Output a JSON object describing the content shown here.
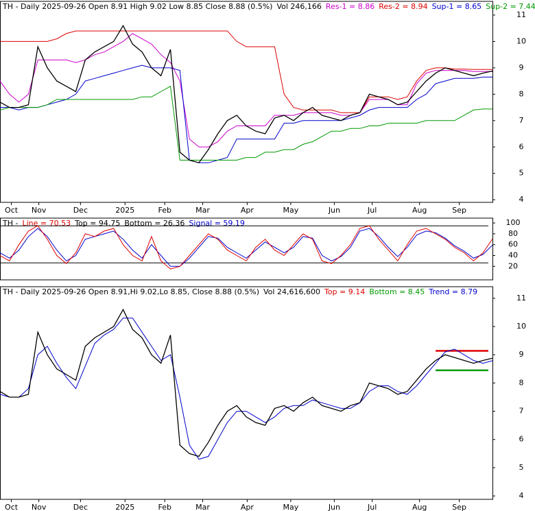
{
  "chart_data": [
    {
      "type": "line",
      "header": [
        {
          "text": "TH - Daily 2025-09-26 Open 8.91  High 9.02  Low 8.85  Close 8.88 (0.5%)",
          "color": "#000000"
        },
        {
          "text": "Vol 246,166",
          "color": "#000000"
        },
        {
          "text": "Res-1 = 8.86",
          "color": "#cc00cc"
        },
        {
          "text": "Res-2 = 8.94",
          "color": "#dd0000"
        },
        {
          "text": "Sup-1 = 8.65",
          "color": "#0000cc"
        },
        {
          "text": "Sup-2 = 7.44",
          "color": "#009900"
        }
      ],
      "xlim": [
        0,
        52
      ],
      "xticks": [
        {
          "value": 1.2,
          "label": "Oct"
        },
        {
          "value": 4.1,
          "label": "Nov"
        },
        {
          "value": 8.5,
          "label": "Dec"
        },
        {
          "value": 13.2,
          "label": "2025"
        },
        {
          "value": 17.4,
          "label": "Feb"
        },
        {
          "value": 21.4,
          "label": "Mar"
        },
        {
          "value": 26.1,
          "label": "Apr"
        },
        {
          "value": 30.7,
          "label": "May"
        },
        {
          "value": 35.3,
          "label": "Jun"
        },
        {
          "value": 39.3,
          "label": "Jul"
        },
        {
          "value": 44.3,
          "label": "Aug"
        },
        {
          "value": 48.5,
          "label": "Sep"
        }
      ],
      "ylim": [
        3.9,
        11.52
      ],
      "yticks": [
        4,
        5,
        6,
        7,
        8,
        9,
        10,
        11
      ],
      "series": [
        {
          "name": "Res-2",
          "color": "#dd0000",
          "values": [
            10.0,
            10.0,
            10.0,
            10.0,
            10.0,
            10.0,
            10.1,
            10.3,
            10.4,
            10.4,
            10.4,
            10.4,
            10.4,
            10.4,
            10.4,
            10.4,
            10.4,
            10.4,
            10.4,
            10.4,
            10.4,
            10.4,
            10.4,
            10.4,
            10.4,
            10.0,
            9.8,
            9.8,
            9.8,
            9.8,
            8.0,
            7.5,
            7.4,
            7.4,
            7.4,
            7.4,
            7.3,
            7.3,
            7.3,
            7.9,
            7.9,
            7.9,
            7.8,
            7.9,
            8.5,
            8.9,
            9.0,
            9.0,
            8.95,
            8.95,
            8.94,
            8.94,
            8.94
          ]
        },
        {
          "name": "Res-1",
          "color": "#cc00cc",
          "values": [
            8.5,
            8.0,
            7.7,
            8.0,
            9.3,
            9.3,
            9.3,
            9.3,
            9.2,
            9.3,
            9.5,
            9.6,
            9.8,
            10.0,
            10.3,
            10.1,
            9.9,
            9.5,
            9.2,
            8.5,
            6.3,
            6.0,
            6.0,
            6.2,
            6.6,
            6.8,
            6.8,
            6.8,
            6.8,
            7.2,
            7.2,
            7.2,
            7.3,
            7.3,
            7.3,
            7.3,
            7.2,
            7.2,
            7.3,
            7.8,
            7.8,
            7.8,
            7.6,
            7.6,
            8.4,
            8.8,
            8.9,
            8.9,
            8.9,
            8.9,
            8.86,
            8.86,
            8.86
          ]
        },
        {
          "name": "Sup-1",
          "color": "#0000cc",
          "values": [
            7.5,
            7.5,
            7.4,
            7.5,
            7.5,
            7.6,
            7.7,
            7.8,
            8.0,
            8.5,
            8.6,
            8.7,
            8.8,
            8.9,
            9.0,
            9.1,
            9.0,
            9.0,
            9.0,
            8.9,
            5.5,
            5.4,
            5.4,
            5.5,
            5.6,
            6.3,
            6.3,
            6.3,
            6.3,
            6.3,
            6.9,
            6.9,
            7.0,
            7.0,
            7.0,
            7.0,
            7.0,
            7.1,
            7.2,
            7.4,
            7.5,
            7.5,
            7.5,
            7.5,
            7.8,
            8.0,
            8.4,
            8.5,
            8.6,
            8.6,
            8.6,
            8.65,
            8.65
          ]
        },
        {
          "name": "Sup-2",
          "color": "#009900",
          "values": [
            7.4,
            7.5,
            7.5,
            7.5,
            7.5,
            7.6,
            7.8,
            7.8,
            7.8,
            7.8,
            7.8,
            7.8,
            7.8,
            7.8,
            7.8,
            7.9,
            7.9,
            8.1,
            8.3,
            5.5,
            5.5,
            5.5,
            5.5,
            5.5,
            5.5,
            5.5,
            5.6,
            5.6,
            5.8,
            5.8,
            5.9,
            5.9,
            6.1,
            6.2,
            6.4,
            6.6,
            6.6,
            6.7,
            6.7,
            6.8,
            6.8,
            6.9,
            6.9,
            6.9,
            6.9,
            7.0,
            7.0,
            7.0,
            7.0,
            7.2,
            7.4,
            7.44,
            7.44
          ]
        },
        {
          "name": "Close",
          "color": "#000000",
          "values": [
            7.7,
            7.5,
            7.5,
            7.6,
            9.8,
            9.0,
            8.5,
            8.3,
            8.1,
            9.3,
            9.6,
            9.8,
            10.0,
            10.6,
            9.9,
            9.6,
            9.0,
            8.7,
            9.7,
            5.8,
            5.5,
            5.4,
            5.9,
            6.5,
            7.0,
            7.2,
            6.8,
            6.6,
            6.5,
            7.1,
            7.2,
            7.0,
            7.3,
            7.5,
            7.2,
            7.1,
            7.0,
            7.2,
            7.3,
            8.0,
            7.9,
            7.8,
            7.6,
            7.7,
            8.1,
            8.5,
            8.8,
            9.0,
            8.9,
            8.8,
            8.7,
            8.8,
            8.88
          ]
        }
      ]
    },
    {
      "type": "line",
      "header": [
        {
          "text": "TH -",
          "color": "#000000"
        },
        {
          "text": "Line = 70.53",
          "color": "#dd0000"
        },
        {
          "text": "Top = 94.75",
          "color": "#000000"
        },
        {
          "text": "Bottom = 26.36",
          "color": "#000000"
        },
        {
          "text": "Signal = 59.19",
          "color": "#0000cc"
        }
      ],
      "xlim": [
        0,
        52
      ],
      "ylim": [
        -5,
        109
      ],
      "yticks": [
        20,
        40,
        60,
        80,
        100
      ],
      "levels": [
        {
          "value": 94.75,
          "color": "#000000"
        },
        {
          "value": 26.36,
          "color": "#000000"
        }
      ],
      "series": [
        {
          "name": "Signal",
          "color": "#0000cc",
          "values": [
            45,
            35,
            50,
            75,
            90,
            75,
            50,
            30,
            40,
            70,
            75,
            80,
            85,
            70,
            50,
            35,
            60,
            40,
            20,
            20,
            35,
            55,
            75,
            72,
            55,
            45,
            35,
            50,
            65,
            55,
            45,
            55,
            75,
            72,
            40,
            30,
            38,
            55,
            85,
            90,
            75,
            55,
            38,
            55,
            78,
            85,
            82,
            72,
            58,
            48,
            35,
            42,
            59.19
          ]
        },
        {
          "name": "Line",
          "color": "#dd0000",
          "values": [
            40,
            30,
            60,
            85,
            95,
            70,
            40,
            25,
            45,
            80,
            75,
            85,
            90,
            60,
            40,
            30,
            75,
            30,
            15,
            20,
            40,
            60,
            80,
            70,
            50,
            40,
            30,
            55,
            70,
            50,
            40,
            60,
            80,
            70,
            30,
            25,
            40,
            60,
            90,
            95,
            70,
            50,
            30,
            60,
            85,
            90,
            80,
            70,
            55,
            45,
            30,
            45,
            70.53
          ]
        }
      ]
    },
    {
      "type": "line",
      "header": [
        {
          "text": "TH - Daily 2025-09-26 Open 8.91,Hi 9.02,Lo 8.85, Close 8.88 (0.5%)",
          "color": "#000000"
        },
        {
          "text": "Vol 24,616,600",
          "color": "#000000"
        },
        {
          "text": "Top = 9.14",
          "color": "#dd0000"
        },
        {
          "text": "Bottom = 8.45",
          "color": "#009900"
        },
        {
          "text": "Trend = 8.79",
          "color": "#0000cc"
        }
      ],
      "xlim": [
        0,
        52
      ],
      "xticks": [
        {
          "value": 1.2,
          "label": "Oct"
        },
        {
          "value": 4.1,
          "label": "Nov"
        },
        {
          "value": 8.5,
          "label": "Dec"
        },
        {
          "value": 13.2,
          "label": "2025"
        },
        {
          "value": 17.4,
          "label": "Feb"
        },
        {
          "value": 21.4,
          "label": "Mar"
        },
        {
          "value": 26.1,
          "label": "Apr"
        },
        {
          "value": 30.7,
          "label": "May"
        },
        {
          "value": 35.3,
          "label": "Jun"
        },
        {
          "value": 39.3,
          "label": "Jul"
        },
        {
          "value": 44.3,
          "label": "Aug"
        },
        {
          "value": 48.5,
          "label": "Sep"
        }
      ],
      "ylim": [
        3.88,
        11.41
      ],
      "yticks": [
        4,
        5,
        6,
        7,
        8,
        9,
        10,
        11
      ],
      "levels": [
        {
          "value": 9.14,
          "color": "#dd0000"
        },
        {
          "value": 8.45,
          "color": "#009900"
        }
      ],
      "series": [
        {
          "name": "Trend",
          "color": "#0000cc",
          "values": [
            7.6,
            7.5,
            7.5,
            7.8,
            9.0,
            9.3,
            8.7,
            8.2,
            7.8,
            8.6,
            9.4,
            9.7,
            9.9,
            10.3,
            10.3,
            9.8,
            9.3,
            8.8,
            9.0,
            7.5,
            5.8,
            5.3,
            5.4,
            6.0,
            6.6,
            7.0,
            7.0,
            6.8,
            6.6,
            6.8,
            7.1,
            7.2,
            7.2,
            7.4,
            7.3,
            7.2,
            7.1,
            7.1,
            7.3,
            7.7,
            7.9,
            7.9,
            7.7,
            7.6,
            7.9,
            8.3,
            8.7,
            9.1,
            9.2,
            9.0,
            8.8,
            8.7,
            8.79
          ]
        },
        {
          "name": "Close",
          "color": "#000000",
          "values": [
            7.7,
            7.5,
            7.5,
            7.6,
            9.8,
            9.0,
            8.5,
            8.3,
            8.1,
            9.3,
            9.6,
            9.8,
            10.0,
            10.6,
            9.9,
            9.6,
            9.0,
            8.7,
            9.7,
            5.8,
            5.5,
            5.4,
            5.9,
            6.5,
            7.0,
            7.2,
            6.8,
            6.6,
            6.5,
            7.1,
            7.2,
            7.0,
            7.3,
            7.5,
            7.2,
            7.1,
            7.0,
            7.2,
            7.3,
            8.0,
            7.9,
            7.8,
            7.6,
            7.7,
            8.1,
            8.5,
            8.8,
            9.0,
            8.9,
            8.8,
            8.7,
            8.8,
            8.88
          ]
        }
      ]
    }
  ]
}
